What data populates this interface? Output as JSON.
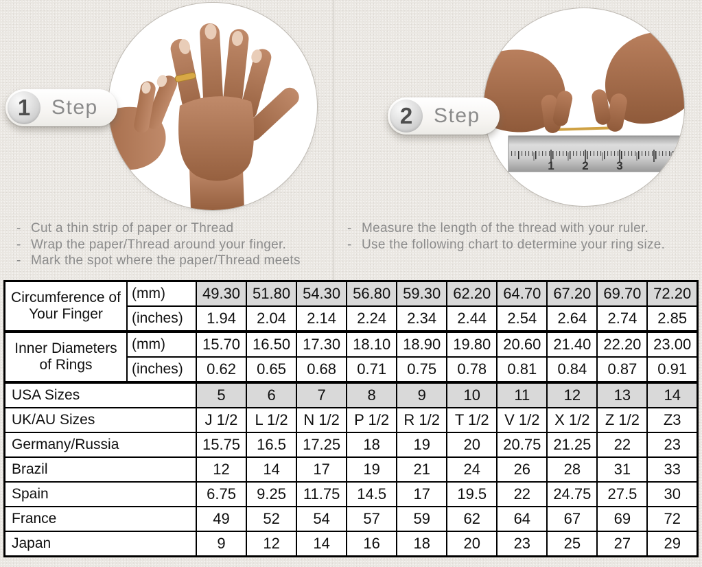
{
  "page": {
    "background_color": "#eae7e2",
    "bullet": "-"
  },
  "steps": [
    {
      "number": "1",
      "label": "Step",
      "photo": "hand-with-ring-on-finger",
      "instructions": [
        "Cut a thin strip of paper or Thread",
        "Wrap the paper/Thread around your finger.",
        "Mark the spot where the paper/Thread meets"
      ]
    },
    {
      "number": "2",
      "label": "Step",
      "photo": "hands-measuring-thread-on-ruler",
      "ruler_numbers": [
        "1",
        "2",
        "3"
      ],
      "instructions": [
        "Measure the length of the thread with your ruler.",
        "Use the following chart to determine your ring size."
      ]
    }
  ],
  "chart_data": {
    "type": "table",
    "highlight_color": "#d9d9d9",
    "columns": 10,
    "rows": [
      {
        "group": "Circumference of Your Finger",
        "group_rowspan": 2,
        "unit": "(mm)",
        "highlight": true,
        "values": [
          "49.30",
          "51.80",
          "54.30",
          "56.80",
          "59.30",
          "62.20",
          "64.70",
          "67.20",
          "69.70",
          "72.20"
        ]
      },
      {
        "unit": "(inches)",
        "values": [
          "1.94",
          "2.04",
          "2.14",
          "2.24",
          "2.34",
          "2.44",
          "2.54",
          "2.64",
          "2.74",
          "2.85"
        ]
      },
      {
        "group": "Inner Diameters of Rings",
        "group_rowspan": 2,
        "unit": "(mm)",
        "thick_top": true,
        "values": [
          "15.70",
          "16.50",
          "17.30",
          "18.10",
          "18.90",
          "19.80",
          "20.60",
          "21.40",
          "22.20",
          "23.00"
        ]
      },
      {
        "unit": "(inches)",
        "values": [
          "0.62",
          "0.65",
          "0.68",
          "0.71",
          "0.75",
          "0.78",
          "0.81",
          "0.84",
          "0.87",
          "0.91"
        ]
      },
      {
        "label": "USA Sizes",
        "highlight": true,
        "thick_top": true,
        "values": [
          "5",
          "6",
          "7",
          "8",
          "9",
          "10",
          "11",
          "12",
          "13",
          "14"
        ]
      },
      {
        "label": "UK/AU Sizes",
        "values": [
          "J 1/2",
          "L 1/2",
          "N 1/2",
          "P 1/2",
          "R 1/2",
          "T 1/2",
          "V 1/2",
          "X 1/2",
          "Z 1/2",
          "Z3"
        ]
      },
      {
        "label": "Germany/Russia",
        "values": [
          "15.75",
          "16.5",
          "17.25",
          "18",
          "19",
          "20",
          "20.75",
          "21.25",
          "22",
          "23"
        ]
      },
      {
        "label": "Brazil",
        "values": [
          "12",
          "14",
          "17",
          "19",
          "21",
          "24",
          "26",
          "28",
          "31",
          "33"
        ]
      },
      {
        "label": "Spain",
        "values": [
          "6.75",
          "9.25",
          "11.75",
          "14.5",
          "17",
          "19.5",
          "22",
          "24.75",
          "27.5",
          "30"
        ]
      },
      {
        "label": "France",
        "values": [
          "49",
          "52",
          "54",
          "57",
          "59",
          "62",
          "64",
          "67",
          "69",
          "72"
        ]
      },
      {
        "label": "Japan",
        "values": [
          "9",
          "12",
          "14",
          "16",
          "18",
          "20",
          "23",
          "25",
          "27",
          "29"
        ]
      }
    ]
  }
}
